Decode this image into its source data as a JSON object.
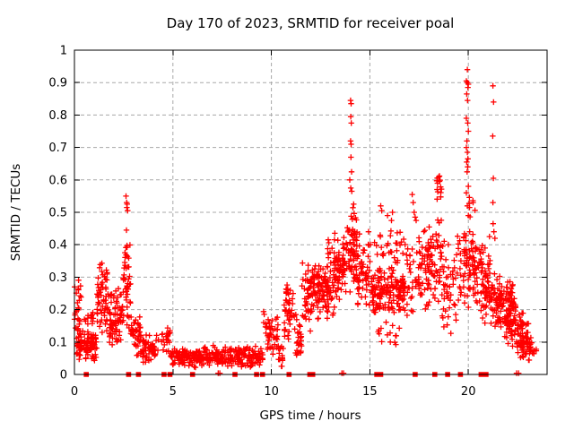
{
  "chart_data": {
    "type": "scatter",
    "title": "Day 170 of 2023, SRMTID for receiver poal",
    "xlabel": "GPS time / hours",
    "ylabel": "SRMTID / TECUs",
    "xlim": [
      0,
      24
    ],
    "ylim": [
      0,
      1
    ],
    "xticks": [
      0,
      5,
      10,
      15,
      20
    ],
    "xticklabels": [
      "0",
      "5",
      "10",
      "15",
      "20"
    ],
    "yticks": [
      0,
      0.1,
      0.2,
      0.3,
      0.4,
      0.5,
      0.6,
      0.7,
      0.8,
      0.9,
      1
    ],
    "yticklabels": [
      "0",
      "0.1",
      "0.2",
      "0.3",
      "0.4",
      "0.5",
      "0.6",
      "0.7",
      "0.8",
      "0.9",
      "1"
    ],
    "grid": true,
    "legend": "none",
    "colors": {
      "marker": "#ff0000",
      "grid": "#a8a8a8",
      "frame": "#000000",
      "background": "#ffffff"
    },
    "series": [
      {
        "name": "srmtid-plus-markers",
        "marker": "plus",
        "color": "#ff0000",
        "density_bands": [
          [
            0.0,
            0.35,
            0.03,
            0.3,
            35
          ],
          [
            0.05,
            1.15,
            0.04,
            0.14,
            90
          ],
          [
            0.5,
            1.1,
            0.13,
            0.2,
            12
          ],
          [
            1.15,
            1.45,
            0.1,
            0.38,
            35
          ],
          [
            1.45,
            1.85,
            0.08,
            0.33,
            40
          ],
          [
            1.85,
            2.45,
            0.08,
            0.27,
            60
          ],
          [
            2.45,
            2.85,
            0.1,
            0.44,
            45
          ],
          [
            2.85,
            3.35,
            0.05,
            0.22,
            40
          ],
          [
            3.35,
            4.3,
            0.03,
            0.13,
            60
          ],
          [
            4.4,
            4.9,
            0.04,
            0.18,
            25
          ],
          [
            4.9,
            6.0,
            0.02,
            0.09,
            70
          ],
          [
            6.0,
            9.6,
            0.02,
            0.09,
            230
          ],
          [
            9.6,
            10.35,
            0.06,
            0.22,
            45
          ],
          [
            10.35,
            10.65,
            0.02,
            0.1,
            15
          ],
          [
            10.65,
            11.15,
            0.08,
            0.32,
            45
          ],
          [
            11.15,
            11.55,
            0.03,
            0.2,
            30
          ],
          [
            11.55,
            12.3,
            0.13,
            0.37,
            65
          ],
          [
            12.3,
            13.2,
            0.17,
            0.35,
            90
          ],
          [
            12.8,
            13.2,
            0.33,
            0.42,
            10
          ],
          [
            13.2,
            13.85,
            0.22,
            0.45,
            70
          ],
          [
            13.85,
            14.35,
            0.22,
            0.55,
            65
          ],
          [
            14.35,
            15.05,
            0.18,
            0.45,
            55
          ],
          [
            15.05,
            16.8,
            0.18,
            0.34,
            150
          ],
          [
            15.2,
            16.8,
            0.33,
            0.47,
            30
          ],
          [
            15.3,
            16.6,
            0.08,
            0.18,
            15
          ],
          [
            16.85,
            17.35,
            0.13,
            0.45,
            25
          ],
          [
            17.35,
            17.95,
            0.18,
            0.47,
            40
          ],
          [
            17.95,
            18.65,
            0.2,
            0.5,
            65
          ],
          [
            18.35,
            18.65,
            0.5,
            0.66,
            14
          ],
          [
            18.65,
            19.3,
            0.1,
            0.47,
            40
          ],
          [
            19.3,
            19.75,
            0.1,
            0.45,
            20
          ],
          [
            19.75,
            20.45,
            0.2,
            0.47,
            70
          ],
          [
            20.0,
            20.35,
            0.47,
            0.6,
            8
          ],
          [
            20.45,
            21.15,
            0.12,
            0.44,
            70
          ],
          [
            21.15,
            21.85,
            0.12,
            0.32,
            70
          ],
          [
            21.85,
            22.45,
            0.08,
            0.3,
            90
          ],
          [
            22.45,
            23.05,
            0.04,
            0.2,
            70
          ],
          [
            23.05,
            23.45,
            0.03,
            0.12,
            20
          ]
        ],
        "highlight_points": [
          [
            2.62,
            0.55
          ],
          [
            2.65,
            0.53
          ],
          [
            2.68,
            0.525
          ],
          [
            2.66,
            0.515
          ],
          [
            2.7,
            0.505
          ],
          [
            2.64,
            0.445
          ],
          [
            13.98,
            0.6
          ],
          [
            14.02,
            0.845
          ],
          [
            14.05,
            0.835
          ],
          [
            14.03,
            0.795
          ],
          [
            14.06,
            0.775
          ],
          [
            14.02,
            0.72
          ],
          [
            14.05,
            0.71
          ],
          [
            14.04,
            0.67
          ],
          [
            14.07,
            0.625
          ],
          [
            14.03,
            0.575
          ],
          [
            14.08,
            0.565
          ],
          [
            15.55,
            0.52
          ],
          [
            15.6,
            0.505
          ],
          [
            15.9,
            0.49
          ],
          [
            16.1,
            0.475
          ],
          [
            16.15,
            0.5
          ],
          [
            17.15,
            0.555
          ],
          [
            17.2,
            0.53
          ],
          [
            17.25,
            0.5
          ],
          [
            17.3,
            0.485
          ],
          [
            17.35,
            0.475
          ],
          [
            19.95,
            0.94
          ],
          [
            19.9,
            0.905
          ],
          [
            19.95,
            0.9
          ],
          [
            20.0,
            0.895
          ],
          [
            19.98,
            0.885
          ],
          [
            19.92,
            0.865
          ],
          [
            19.96,
            0.845
          ],
          [
            19.9,
            0.79
          ],
          [
            19.97,
            0.775
          ],
          [
            20.0,
            0.75
          ],
          [
            19.93,
            0.72
          ],
          [
            19.9,
            0.7
          ],
          [
            19.95,
            0.685
          ],
          [
            19.98,
            0.665
          ],
          [
            19.92,
            0.655
          ],
          [
            19.97,
            0.64
          ],
          [
            19.94,
            0.625
          ],
          [
            20.0,
            0.58
          ],
          [
            19.9,
            0.56
          ],
          [
            19.95,
            0.52
          ],
          [
            20.0,
            0.49
          ],
          [
            21.25,
            0.89
          ],
          [
            21.28,
            0.84
          ],
          [
            21.24,
            0.735
          ],
          [
            21.27,
            0.605
          ],
          [
            21.25,
            0.53
          ],
          [
            21.26,
            0.465
          ],
          [
            21.3,
            0.44
          ],
          [
            21.35,
            0.42
          ],
          [
            7.3,
            0.004
          ],
          [
            7.38,
            0.004
          ],
          [
            13.58,
            0.004
          ],
          [
            13.66,
            0.004
          ],
          [
            22.45,
            0.004
          ],
          [
            22.55,
            0.004
          ]
        ]
      },
      {
        "name": "zero-value-flags",
        "marker": "filled-square",
        "color": "#ff0000",
        "y": 0,
        "x_values": [
          0.6,
          2.75,
          3.25,
          4.55,
          4.85,
          6.0,
          8.15,
          9.25,
          9.55,
          10.9,
          11.95,
          12.1,
          15.35,
          15.55,
          17.3,
          18.3,
          18.95,
          19.6,
          20.65,
          20.9
        ]
      }
    ]
  }
}
